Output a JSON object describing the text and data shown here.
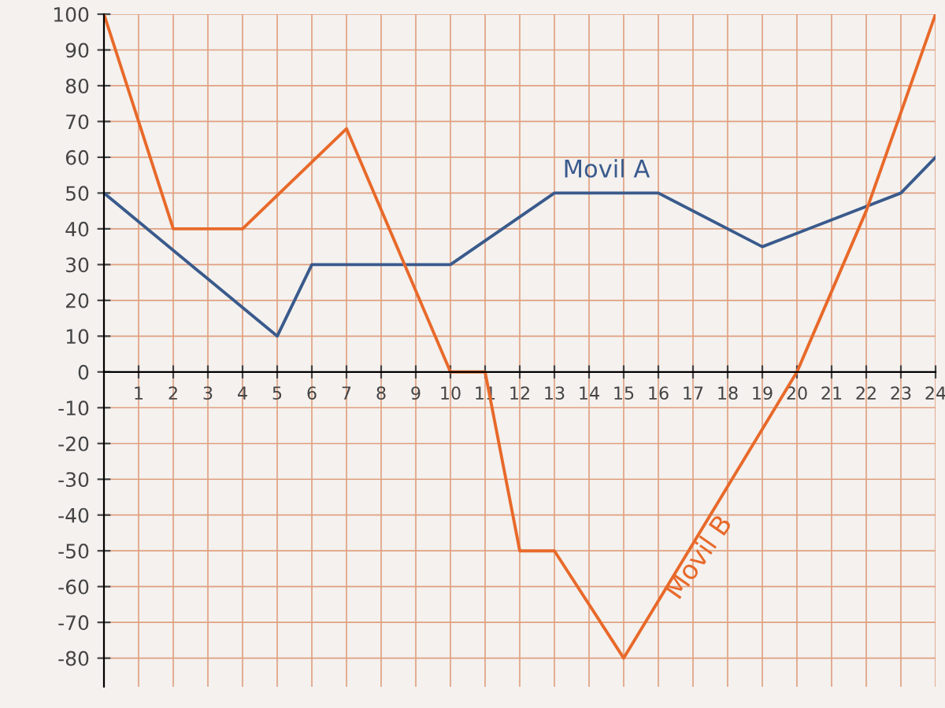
{
  "chart_data": {
    "type": "line",
    "series": [
      {
        "name": "Movil A",
        "color": "#3a5a8c",
        "x": [
          0,
          5,
          6,
          10,
          13,
          16,
          19,
          23,
          24
        ],
        "values": [
          50,
          10,
          30,
          30,
          50,
          50,
          35,
          50,
          60
        ]
      },
      {
        "name": "Movil B",
        "color": "#e8692a",
        "x": [
          0,
          2,
          4,
          7,
          10,
          11,
          12,
          13,
          15,
          20,
          22,
          24
        ],
        "values": [
          100,
          40,
          40,
          68,
          0,
          0,
          -50,
          -50,
          -80,
          0,
          45,
          100
        ]
      }
    ],
    "xlim": [
      0,
      24
    ],
    "ylim": [
      -88,
      100
    ],
    "xticks": [
      1,
      2,
      3,
      4,
      5,
      6,
      7,
      8,
      9,
      10,
      11,
      12,
      13,
      14,
      15,
      16,
      17,
      18,
      19,
      20,
      21,
      22,
      23,
      24
    ],
    "yticks": [
      -80,
      -70,
      -60,
      -50,
      -40,
      -30,
      -20,
      -10,
      0,
      10,
      20,
      30,
      40,
      50,
      60,
      70,
      80,
      90,
      100
    ],
    "grid": true,
    "legend": false,
    "marker": "none",
    "line_style": "solid"
  }
}
